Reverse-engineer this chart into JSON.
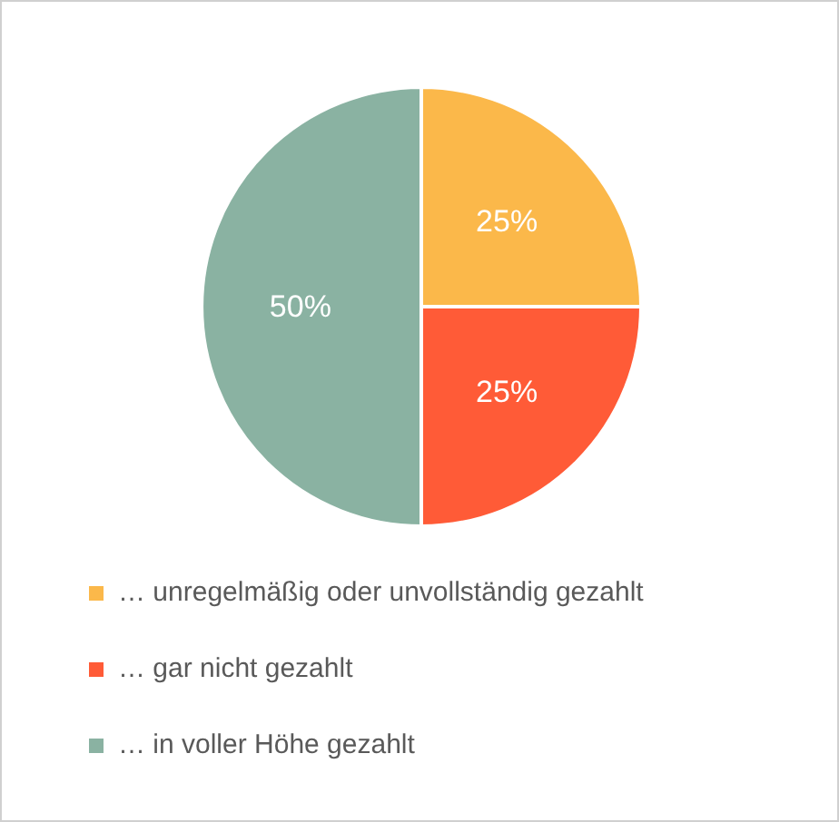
{
  "chart_data": {
    "type": "pie",
    "categories": [
      "… unregelmäßig oder unvollständig gezahlt",
      "… gar nicht gezahlt",
      "… in voller Höhe gezahlt"
    ],
    "values": [
      25,
      25,
      50
    ],
    "colors": [
      "#fbb84a",
      "#ff5b37",
      "#8ab2a2"
    ],
    "value_labels": [
      "25%",
      "25%",
      "50%"
    ],
    "legend": "bottom"
  }
}
